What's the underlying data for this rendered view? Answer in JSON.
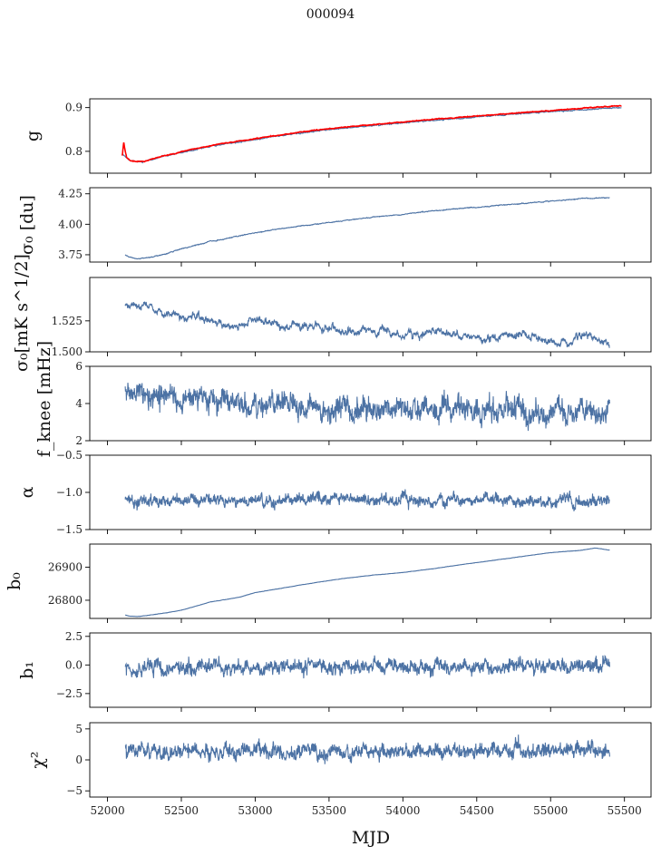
{
  "figure": {
    "title": "000094",
    "xlabel": "MJD"
  },
  "colors": {
    "series": "#4c72a4",
    "fit": "#ff0000",
    "frame": "#000000",
    "background": "#ffffff"
  },
  "chart_data": [
    {
      "type": "line",
      "ylabel": "g",
      "xlim": [
        51880,
        55680
      ],
      "ylim": [
        0.75,
        0.92
      ],
      "yticks": [
        0.8,
        0.9
      ],
      "ytick_labels": [
        "0.8",
        "0.9"
      ],
      "grid": false,
      "series": [
        {
          "color": "#4c72a4",
          "x": [
            52100,
            52150,
            52200,
            52250,
            52300,
            52400,
            52500,
            52600,
            52700,
            52800,
            52900,
            53000,
            53200,
            53400,
            53600,
            53800,
            54000,
            54200,
            54400,
            54600,
            54800,
            55000,
            55200,
            55400,
            55480
          ],
          "y": [
            0.795,
            0.78,
            0.776,
            0.777,
            0.781,
            0.79,
            0.797,
            0.804,
            0.811,
            0.817,
            0.822,
            0.827,
            0.837,
            0.846,
            0.853,
            0.859,
            0.865,
            0.871,
            0.876,
            0.881,
            0.886,
            0.891,
            0.895,
            0.899,
            0.9
          ]
        },
        {
          "color": "#ff0000",
          "x": [
            52100,
            52110,
            52120,
            52130,
            52150,
            52200,
            52250,
            52300,
            52400,
            52500,
            52600,
            52700,
            52800,
            52900,
            53000,
            53200,
            53400,
            53600,
            53800,
            54000,
            54200,
            54400,
            54600,
            54800,
            55000,
            55200,
            55400,
            55480
          ],
          "y": [
            0.79,
            0.82,
            0.8,
            0.785,
            0.779,
            0.776,
            0.777,
            0.782,
            0.791,
            0.799,
            0.806,
            0.813,
            0.819,
            0.824,
            0.829,
            0.839,
            0.848,
            0.855,
            0.861,
            0.867,
            0.873,
            0.878,
            0.883,
            0.888,
            0.893,
            0.898,
            0.903,
            0.904
          ]
        }
      ]
    },
    {
      "type": "line",
      "ylabel": "σ₀ [du]",
      "xlim": [
        51880,
        55680
      ],
      "ylim": [
        3.69,
        4.3
      ],
      "yticks": [
        3.75,
        4.0,
        4.25
      ],
      "ytick_labels": [
        "3.75",
        "4.00",
        "4.25"
      ],
      "grid": false,
      "series": [
        {
          "color": "#4c72a4",
          "x": [
            52120,
            52150,
            52200,
            52250,
            52300,
            52400,
            52500,
            52600,
            52700,
            52800,
            52900,
            53000,
            53200,
            53400,
            53600,
            53800,
            54000,
            54200,
            54400,
            54600,
            54800,
            55000,
            55200,
            55400
          ],
          "y": [
            3.75,
            3.73,
            3.72,
            3.72,
            3.73,
            3.76,
            3.8,
            3.83,
            3.86,
            3.88,
            3.91,
            3.93,
            3.97,
            4.0,
            4.03,
            4.06,
            4.08,
            4.11,
            4.13,
            4.15,
            4.17,
            4.19,
            4.21,
            4.22
          ]
        }
      ]
    },
    {
      "type": "line",
      "ylabel": "σ₀[mK s^1/2]",
      "xlim": [
        51880,
        55680
      ],
      "ylim": [
        1.5,
        1.56
      ],
      "yticks": [
        1.5,
        1.525
      ],
      "ytick_labels": [
        "1.500",
        "1.525"
      ],
      "grid": false,
      "series": [
        {
          "color": "#4c72a4",
          "x": [
            52120,
            52200,
            52300,
            52400,
            52500,
            52600,
            52700,
            52800,
            52900,
            53000,
            53200,
            53400,
            53600,
            53800,
            54000,
            54200,
            54400,
            54600,
            54800,
            55000,
            55100,
            55200,
            55300,
            55400
          ],
          "y": [
            1.538,
            1.54,
            1.535,
            1.531,
            1.528,
            1.529,
            1.524,
            1.521,
            1.523,
            1.527,
            1.519,
            1.522,
            1.515,
            1.518,
            1.513,
            1.516,
            1.512,
            1.51,
            1.514,
            1.509,
            1.506,
            1.513,
            1.51,
            1.505
          ]
        }
      ]
    },
    {
      "type": "line",
      "ylabel": "f_knee [mHz]",
      "xlim": [
        51880,
        55680
      ],
      "ylim": [
        2,
        6
      ],
      "yticks": [
        2,
        4,
        6
      ],
      "ytick_labels": [
        "2",
        "4",
        "6"
      ],
      "grid": false,
      "series": [
        {
          "color": "#4c72a4",
          "x": [
            52120,
            52200,
            52300,
            52400,
            52500,
            52600,
            52700,
            52800,
            52900,
            53000,
            53200,
            53400,
            53600,
            53800,
            54000,
            54200,
            54400,
            54600,
            54800,
            55000,
            55200,
            55400
          ],
          "y": [
            4.6,
            4.7,
            4.5,
            4.4,
            4.2,
            4.3,
            4.1,
            4.0,
            4.0,
            3.9,
            3.9,
            3.8,
            3.8,
            3.7,
            3.7,
            3.7,
            3.6,
            3.6,
            3.6,
            3.6,
            3.6,
            3.5
          ]
        }
      ]
    },
    {
      "type": "line",
      "ylabel": "α",
      "xlim": [
        51880,
        55680
      ],
      "ylim": [
        -1.5,
        -0.5
      ],
      "yticks": [
        -1.5,
        -1.0,
        -0.5
      ],
      "ytick_labels": [
        "−1.5",
        "−1.0",
        "−0.5"
      ],
      "grid": false,
      "series": [
        {
          "color": "#4c72a4",
          "x": [
            52120,
            55400
          ],
          "y": [
            -1.1,
            -1.1
          ]
        }
      ]
    },
    {
      "type": "line",
      "ylabel": "b₀",
      "xlim": [
        51880,
        55680
      ],
      "ylim": [
        26745,
        26970
      ],
      "yticks": [
        26800,
        26900
      ],
      "ytick_labels": [
        "26800",
        "26900"
      ],
      "grid": false,
      "series": [
        {
          "color": "#4c72a4",
          "x": [
            52120,
            52150,
            52200,
            52250,
            52300,
            52400,
            52500,
            52600,
            52700,
            52800,
            52900,
            53000,
            53200,
            53400,
            53600,
            53800,
            54000,
            54200,
            54400,
            54600,
            54800,
            55000,
            55200,
            55300,
            55400
          ],
          "y": [
            26755,
            26752,
            26751,
            26753,
            26756,
            26762,
            26770,
            26782,
            26795,
            26802,
            26810,
            26823,
            26838,
            26853,
            26866,
            26876,
            26884,
            26895,
            26908,
            26920,
            26932,
            26944,
            26951,
            26958,
            26952
          ]
        }
      ]
    },
    {
      "type": "line",
      "ylabel": "b₁",
      "xlim": [
        51880,
        55680
      ],
      "ylim": [
        -3.7,
        2.8
      ],
      "yticks": [
        -2.5,
        0.0,
        2.5
      ],
      "ytick_labels": [
        "−2.5",
        "0.0",
        "2.5"
      ],
      "grid": false,
      "series": [
        {
          "color": "#4c72a4",
          "x": [
            52120,
            55400
          ],
          "y": [
            -0.2,
            -0.1
          ]
        }
      ]
    },
    {
      "type": "line",
      "ylabel": "χ²",
      "xlim": [
        51880,
        55680
      ],
      "ylim": [
        -6,
        6
      ],
      "yticks": [
        -5,
        0,
        5
      ],
      "ytick_labels": [
        "−5",
        "0",
        "5"
      ],
      "xticks": [
        52000,
        52500,
        53000,
        53500,
        54000,
        54500,
        55000,
        55500
      ],
      "xtick_labels": [
        "52000",
        "52500",
        "53000",
        "53500",
        "54000",
        "54500",
        "55000",
        "55500"
      ],
      "grid": false,
      "series": [
        {
          "color": "#4c72a4",
          "x": [
            52120,
            55400
          ],
          "y": [
            1.2,
            1.5
          ]
        }
      ]
    }
  ]
}
